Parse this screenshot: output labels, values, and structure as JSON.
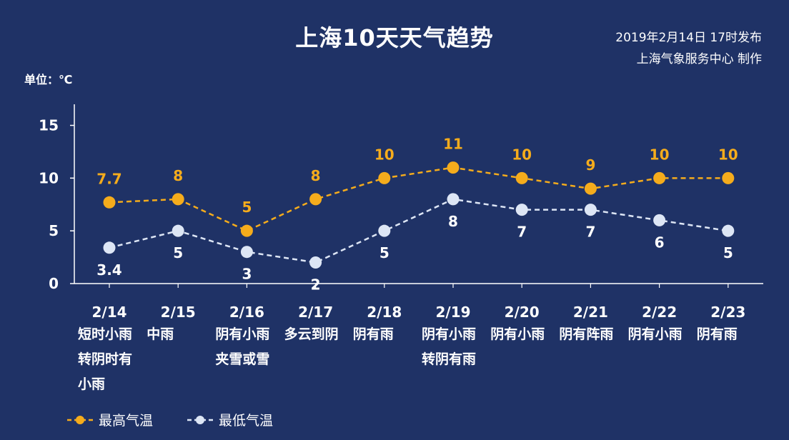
{
  "title": "上海10天天气趋势",
  "published": "2019年2月14日 17时发布",
  "producer": "上海气象服务中心  制作",
  "unit_label": "单位：℃",
  "colors": {
    "high": "#f5ac1c",
    "low": "#dde6f5",
    "axis": "#ffffff",
    "background": "#1f3266"
  },
  "chart_data": {
    "type": "line",
    "title": "上海10天天气趋势",
    "ylabel": "单位：℃",
    "ylim": [
      0,
      17
    ],
    "yticks": [
      0,
      5,
      10,
      15
    ],
    "grid": false,
    "legend_position": "bottom-left",
    "categories": [
      {
        "date": "2/14",
        "weather": [
          "短时小雨",
          "转阴时有",
          "小雨"
        ]
      },
      {
        "date": "2/15",
        "weather": [
          "中雨"
        ]
      },
      {
        "date": "2/16",
        "weather": [
          "阴有小雨",
          "夹雪或雪"
        ]
      },
      {
        "date": "2/17",
        "weather": [
          "多云到阴"
        ]
      },
      {
        "date": "2/18",
        "weather": [
          "阴有雨"
        ]
      },
      {
        "date": "2/19",
        "weather": [
          "阴有小雨",
          "转阴有雨"
        ]
      },
      {
        "date": "2/20",
        "weather": [
          "阴有小雨"
        ]
      },
      {
        "date": "2/21",
        "weather": [
          "阴有阵雨"
        ]
      },
      {
        "date": "2/22",
        "weather": [
          "阴有小雨"
        ]
      },
      {
        "date": "2/23",
        "weather": [
          "阴有雨"
        ]
      }
    ],
    "series": [
      {
        "name": "最高气温",
        "labels": [
          "7.7",
          "8",
          "5",
          "8",
          "10",
          "11",
          "10",
          "9",
          "10",
          "10"
        ],
        "values": [
          7.7,
          8,
          5,
          8,
          10,
          11,
          10,
          9,
          10,
          10
        ]
      },
      {
        "name": "最低气温",
        "labels": [
          "3.4",
          "5",
          "3",
          "2",
          "5",
          "8",
          "7",
          "7",
          "6",
          "5"
        ],
        "values": [
          3.4,
          5,
          3,
          2,
          5,
          8,
          7,
          7,
          6,
          5
        ]
      }
    ]
  }
}
